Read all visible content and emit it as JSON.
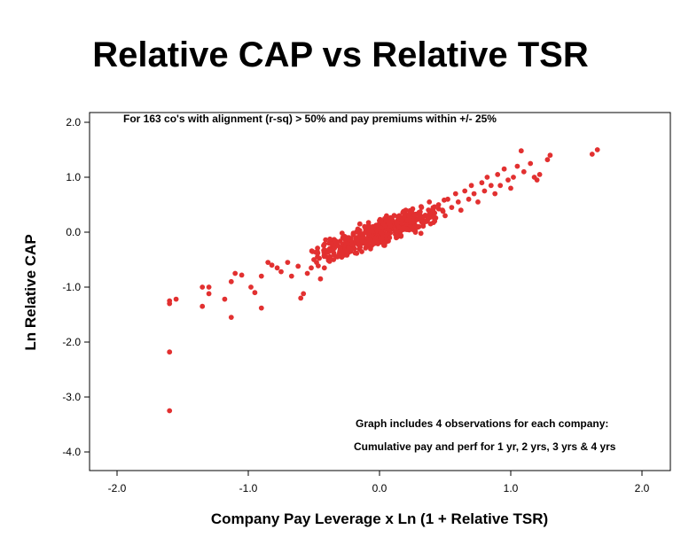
{
  "chart_data": {
    "type": "scatter",
    "title": "Relative CAP vs Relative TSR",
    "xlabel": "Company Pay Leverage x Ln (1 + Relative TSR)",
    "ylabel": "Ln Relative CAP",
    "xlim": [
      -2.2,
      2.1
    ],
    "ylim": [
      -4.2,
      2.2
    ],
    "xticks": [
      -2.0,
      -1.0,
      0.0,
      1.0,
      2.0
    ],
    "xtick_labels": [
      "-2.0",
      "-1.0",
      "0.0",
      "1.0",
      "2.0"
    ],
    "yticks": [
      2.0,
      1.0,
      0.0,
      -1.0,
      -2.0,
      -3.0,
      -4.0
    ],
    "ytick_labels": [
      "2.0",
      "1.0",
      "0.0",
      "-1.0",
      "-2.0",
      "-3.0",
      "-4.0"
    ],
    "grid": false,
    "point_color": "#e23030",
    "annotations": [
      "For 163 co's with alignment (r-sq) > 50% and pay premiums within +/- 25%",
      "Graph includes 4 observations for each company:",
      "Cumulative pay and perf for 1 yr, 2 yrs, 3 yrs & 4 yrs"
    ],
    "points": [
      [
        -1.6,
        -3.25
      ],
      [
        -1.6,
        -2.18
      ],
      [
        -1.6,
        -1.3
      ],
      [
        -1.6,
        -1.25
      ],
      [
        -1.55,
        -1.22
      ],
      [
        -1.35,
        -1.0
      ],
      [
        -1.35,
        -1.35
      ],
      [
        -1.3,
        -1.12
      ],
      [
        -1.3,
        -1.0
      ],
      [
        -1.18,
        -1.22
      ],
      [
        -1.13,
        -1.55
      ],
      [
        -1.13,
        -0.9
      ],
      [
        -1.1,
        -0.75
      ],
      [
        -1.05,
        -0.78
      ],
      [
        -0.98,
        -1.0
      ],
      [
        -0.95,
        -1.1
      ],
      [
        -0.9,
        -1.38
      ],
      [
        -0.9,
        -0.8
      ],
      [
        -0.85,
        -0.55
      ],
      [
        -0.82,
        -0.6
      ],
      [
        -0.78,
        -0.65
      ],
      [
        -0.75,
        -0.72
      ],
      [
        -0.7,
        -0.55
      ],
      [
        -0.67,
        -0.8
      ],
      [
        -0.62,
        -0.62
      ],
      [
        -0.6,
        -1.2
      ],
      [
        -0.58,
        -1.12
      ],
      [
        -0.55,
        -0.75
      ],
      [
        -0.52,
        -0.65
      ],
      [
        -0.5,
        -0.5
      ],
      [
        -0.48,
        -0.55
      ],
      [
        -0.45,
        -0.85
      ],
      [
        -0.42,
        -0.65
      ],
      [
        -0.4,
        -0.45
      ],
      [
        -0.38,
        -0.3
      ],
      [
        -0.35,
        -0.5
      ],
      [
        -0.33,
        -0.2
      ],
      [
        -0.3,
        -0.3
      ],
      [
        -0.28,
        -0.1
      ],
      [
        -0.25,
        -0.2
      ],
      [
        -0.22,
        -0.35
      ],
      [
        -0.2,
        -0.05
      ],
      [
        -0.18,
        -0.15
      ],
      [
        -0.15,
        0.15
      ],
      [
        -0.12,
        -0.1
      ],
      [
        -0.1,
        0.05
      ],
      [
        -0.08,
        -0.25
      ],
      [
        -0.05,
        0.1
      ],
      [
        -0.03,
        -0.05
      ],
      [
        0.0,
        0.0
      ],
      [
        0.02,
        0.15
      ],
      [
        0.05,
        0.05
      ],
      [
        0.08,
        0.25
      ],
      [
        0.1,
        0.1
      ],
      [
        0.12,
        0.0
      ],
      [
        0.15,
        0.3
      ],
      [
        0.18,
        0.2
      ],
      [
        0.2,
        0.4
      ],
      [
        0.22,
        0.15
      ],
      [
        0.25,
        0.35
      ],
      [
        0.28,
        0.25
      ],
      [
        0.3,
        0.1
      ],
      [
        0.32,
        0.45
      ],
      [
        0.35,
        0.3
      ],
      [
        0.38,
        0.55
      ],
      [
        0.4,
        0.35
      ],
      [
        0.42,
        0.2
      ],
      [
        0.45,
        0.5
      ],
      [
        0.48,
        0.4
      ],
      [
        0.5,
        0.3
      ],
      [
        0.52,
        0.6
      ],
      [
        0.55,
        0.45
      ],
      [
        0.58,
        0.7
      ],
      [
        0.6,
        0.55
      ],
      [
        0.62,
        0.4
      ],
      [
        0.65,
        0.75
      ],
      [
        0.68,
        0.6
      ],
      [
        0.7,
        0.85
      ],
      [
        0.72,
        0.7
      ],
      [
        0.75,
        0.55
      ],
      [
        0.78,
        0.9
      ],
      [
        0.8,
        0.75
      ],
      [
        0.82,
        1.0
      ],
      [
        0.85,
        0.85
      ],
      [
        0.88,
        0.7
      ],
      [
        0.9,
        1.05
      ],
      [
        0.92,
        0.85
      ],
      [
        0.95,
        1.15
      ],
      [
        0.98,
        0.95
      ],
      [
        1.0,
        0.8
      ],
      [
        1.02,
        1.0
      ],
      [
        1.05,
        1.2
      ],
      [
        1.08,
        1.48
      ],
      [
        1.1,
        1.1
      ],
      [
        1.15,
        1.25
      ],
      [
        1.18,
        1.0
      ],
      [
        1.2,
        0.95
      ],
      [
        1.22,
        1.05
      ],
      [
        1.28,
        1.32
      ],
      [
        1.3,
        1.4
      ],
      [
        1.62,
        1.42
      ],
      [
        1.66,
        1.5
      ]
    ]
  }
}
